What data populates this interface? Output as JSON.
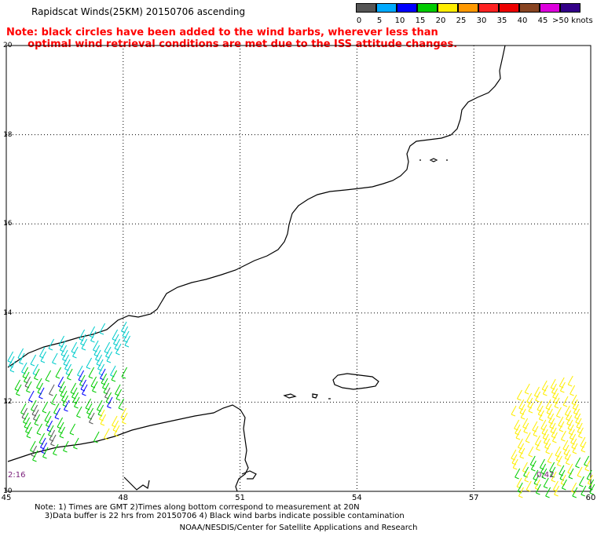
{
  "title": "Rapidscat Winds(25KM) 20150706 ascending",
  "note_red_line1": "Note: black circles have been added to the wind barbs, wherever less than",
  "note_red_line2": "      optimal wind retrieval conditions are met due to the ISS attitude changes.",
  "legend": {
    "labels": [
      "0",
      "5",
      "10",
      "15",
      "20",
      "25",
      "30",
      "35",
      "40",
      "45",
      ">50 knots"
    ],
    "colors": [
      "#555555",
      "#00aaff",
      "#0000ff",
      "#00cc00",
      "#ffee00",
      "#ff9900",
      "#ff2222",
      "#ee0000",
      "#884422",
      "#dd00dd",
      "#330088"
    ]
  },
  "lat_labels": [
    "20",
    "18",
    "16",
    "14",
    "12",
    "10"
  ],
  "lon_labels": [
    "45",
    "48",
    "51",
    "54",
    "57",
    "60"
  ],
  "time_left": "2:16",
  "time_right": "0:42",
  "footer_note": "Note: 1) Times are GMT 2)Times along bottom correspond to measurement at 20N\n    3)Data buffer is 22 hrs from 20150706 4) Black wind barbs indicate possible contamination",
  "footer_credit": "NOAA/NESDIS/Center for Satellite Applications and Research",
  "map_data": {
    "lat_range": [
      10,
      20
    ],
    "lon_range": [
      45,
      60
    ],
    "barb_colors": [
      "#00cccc",
      "#0000ff",
      "#00cc00",
      "#ffee00",
      "#555555"
    ]
  }
}
